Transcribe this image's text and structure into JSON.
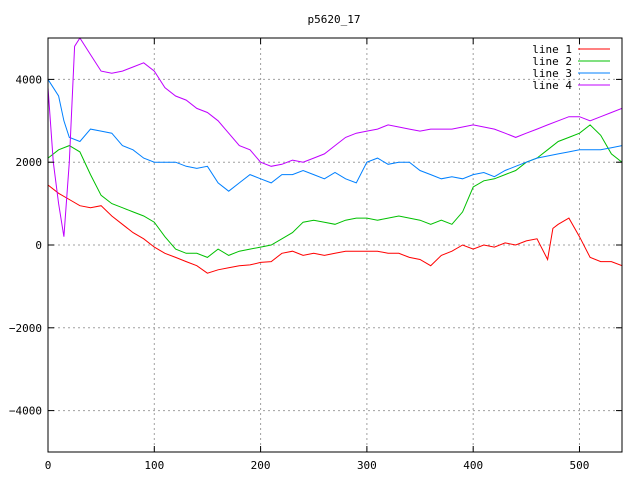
{
  "chart_data": {
    "type": "line",
    "title": "p5620_17",
    "xlabel": "",
    "ylabel": "",
    "xlim": [
      0,
      540
    ],
    "ylim": [
      -5000,
      5000
    ],
    "x_ticks": [
      0,
      100,
      200,
      300,
      400,
      500
    ],
    "y_ticks": [
      -4000,
      -2000,
      0,
      2000,
      4000
    ],
    "x_tick_labels": [
      "0",
      "100",
      "200",
      "300",
      "400",
      "500"
    ],
    "y_tick_labels": [
      "−4000",
      "−2000",
      "0",
      "2000",
      "4000"
    ],
    "grid": true,
    "legend_position": "top-right",
    "series": [
      {
        "name": "line 1",
        "color": "#ff0000",
        "points": [
          [
            0,
            1450
          ],
          [
            10,
            1250
          ],
          [
            20,
            1100
          ],
          [
            30,
            950
          ],
          [
            40,
            900
          ],
          [
            50,
            950
          ],
          [
            60,
            700
          ],
          [
            70,
            500
          ],
          [
            80,
            300
          ],
          [
            90,
            150
          ],
          [
            100,
            -50
          ],
          [
            110,
            -200
          ],
          [
            120,
            -300
          ],
          [
            130,
            -400
          ],
          [
            140,
            -500
          ],
          [
            150,
            -680
          ],
          [
            160,
            -600
          ],
          [
            170,
            -550
          ],
          [
            180,
            -500
          ],
          [
            190,
            -480
          ],
          [
            200,
            -420
          ],
          [
            210,
            -400
          ],
          [
            220,
            -200
          ],
          [
            230,
            -150
          ],
          [
            240,
            -250
          ],
          [
            250,
            -200
          ],
          [
            260,
            -250
          ],
          [
            270,
            -200
          ],
          [
            280,
            -150
          ],
          [
            290,
            -150
          ],
          [
            300,
            -150
          ],
          [
            310,
            -150
          ],
          [
            320,
            -200
          ],
          [
            330,
            -200
          ],
          [
            340,
            -300
          ],
          [
            350,
            -350
          ],
          [
            360,
            -500
          ],
          [
            370,
            -250
          ],
          [
            380,
            -150
          ],
          [
            390,
            0
          ],
          [
            400,
            -100
          ],
          [
            410,
            0
          ],
          [
            420,
            -50
          ],
          [
            430,
            50
          ],
          [
            440,
            0
          ],
          [
            450,
            100
          ],
          [
            460,
            150
          ],
          [
            470,
            -350
          ],
          [
            475,
            400
          ],
          [
            480,
            500
          ],
          [
            490,
            650
          ],
          [
            500,
            200
          ],
          [
            510,
            -300
          ],
          [
            520,
            -400
          ],
          [
            530,
            -400
          ],
          [
            540,
            -500
          ]
        ]
      },
      {
        "name": "line 2",
        "color": "#00c000",
        "points": [
          [
            0,
            2100
          ],
          [
            10,
            2300
          ],
          [
            20,
            2400
          ],
          [
            30,
            2250
          ],
          [
            40,
            1700
          ],
          [
            50,
            1200
          ],
          [
            60,
            1000
          ],
          [
            70,
            900
          ],
          [
            80,
            800
          ],
          [
            90,
            700
          ],
          [
            100,
            550
          ],
          [
            110,
            200
          ],
          [
            120,
            -100
          ],
          [
            130,
            -200
          ],
          [
            140,
            -200
          ],
          [
            150,
            -300
          ],
          [
            160,
            -100
          ],
          [
            170,
            -250
          ],
          [
            180,
            -150
          ],
          [
            190,
            -100
          ],
          [
            200,
            -50
          ],
          [
            210,
            0
          ],
          [
            220,
            150
          ],
          [
            230,
            300
          ],
          [
            240,
            550
          ],
          [
            250,
            600
          ],
          [
            260,
            550
          ],
          [
            270,
            500
          ],
          [
            280,
            600
          ],
          [
            290,
            650
          ],
          [
            300,
            650
          ],
          [
            310,
            600
          ],
          [
            320,
            650
          ],
          [
            330,
            700
          ],
          [
            340,
            650
          ],
          [
            350,
            600
          ],
          [
            360,
            500
          ],
          [
            370,
            600
          ],
          [
            380,
            500
          ],
          [
            390,
            800
          ],
          [
            400,
            1400
          ],
          [
            410,
            1550
          ],
          [
            420,
            1600
          ],
          [
            430,
            1700
          ],
          [
            440,
            1800
          ],
          [
            450,
            2000
          ],
          [
            460,
            2100
          ],
          [
            470,
            2300
          ],
          [
            480,
            2500
          ],
          [
            490,
            2600
          ],
          [
            500,
            2700
          ],
          [
            510,
            2900
          ],
          [
            520,
            2650
          ],
          [
            530,
            2200
          ],
          [
            540,
            2000
          ]
        ]
      },
      {
        "name": "line 3",
        "color": "#0080ff",
        "points": [
          [
            0,
            4000
          ],
          [
            5,
            3800
          ],
          [
            10,
            3600
          ],
          [
            15,
            3000
          ],
          [
            20,
            2600
          ],
          [
            30,
            2500
          ],
          [
            40,
            2800
          ],
          [
            50,
            2750
          ],
          [
            60,
            2700
          ],
          [
            70,
            2400
          ],
          [
            80,
            2300
          ],
          [
            90,
            2100
          ],
          [
            100,
            2000
          ],
          [
            110,
            2000
          ],
          [
            120,
            2000
          ],
          [
            130,
            1900
          ],
          [
            140,
            1850
          ],
          [
            150,
            1900
          ],
          [
            160,
            1500
          ],
          [
            170,
            1300
          ],
          [
            180,
            1500
          ],
          [
            190,
            1700
          ],
          [
            200,
            1600
          ],
          [
            210,
            1500
          ],
          [
            220,
            1700
          ],
          [
            230,
            1700
          ],
          [
            240,
            1800
          ],
          [
            250,
            1700
          ],
          [
            260,
            1600
          ],
          [
            270,
            1750
          ],
          [
            280,
            1600
          ],
          [
            290,
            1500
          ],
          [
            300,
            2000
          ],
          [
            310,
            2100
          ],
          [
            320,
            1950
          ],
          [
            330,
            2000
          ],
          [
            340,
            2000
          ],
          [
            350,
            1800
          ],
          [
            360,
            1700
          ],
          [
            370,
            1600
          ],
          [
            380,
            1650
          ],
          [
            390,
            1600
          ],
          [
            400,
            1700
          ],
          [
            410,
            1750
          ],
          [
            420,
            1650
          ],
          [
            430,
            1800
          ],
          [
            440,
            1900
          ],
          [
            450,
            2000
          ],
          [
            460,
            2100
          ],
          [
            470,
            2150
          ],
          [
            480,
            2200
          ],
          [
            490,
            2250
          ],
          [
            500,
            2300
          ],
          [
            510,
            2300
          ],
          [
            520,
            2300
          ],
          [
            530,
            2350
          ],
          [
            540,
            2400
          ]
        ]
      },
      {
        "name": "line 4",
        "color": "#c000ff",
        "points": [
          [
            0,
            3800
          ],
          [
            5,
            2000
          ],
          [
            10,
            1000
          ],
          [
            15,
            200
          ],
          [
            20,
            2000
          ],
          [
            25,
            4800
          ],
          [
            30,
            5000
          ],
          [
            40,
            4600
          ],
          [
            50,
            4200
          ],
          [
            60,
            4150
          ],
          [
            70,
            4200
          ],
          [
            80,
            4300
          ],
          [
            90,
            4400
          ],
          [
            100,
            4200
          ],
          [
            110,
            3800
          ],
          [
            120,
            3600
          ],
          [
            130,
            3500
          ],
          [
            140,
            3300
          ],
          [
            150,
            3200
          ],
          [
            160,
            3000
          ],
          [
            170,
            2700
          ],
          [
            180,
            2400
          ],
          [
            190,
            2300
          ],
          [
            200,
            2000
          ],
          [
            210,
            1900
          ],
          [
            220,
            1950
          ],
          [
            230,
            2050
          ],
          [
            240,
            2000
          ],
          [
            250,
            2100
          ],
          [
            260,
            2200
          ],
          [
            270,
            2400
          ],
          [
            280,
            2600
          ],
          [
            290,
            2700
          ],
          [
            300,
            2750
          ],
          [
            310,
            2800
          ],
          [
            320,
            2900
          ],
          [
            330,
            2850
          ],
          [
            340,
            2800
          ],
          [
            350,
            2750
          ],
          [
            360,
            2800
          ],
          [
            370,
            2800
          ],
          [
            380,
            2800
          ],
          [
            390,
            2850
          ],
          [
            400,
            2900
          ],
          [
            410,
            2850
          ],
          [
            420,
            2800
          ],
          [
            430,
            2700
          ],
          [
            440,
            2600
          ],
          [
            450,
            2700
          ],
          [
            460,
            2800
          ],
          [
            470,
            2900
          ],
          [
            480,
            3000
          ],
          [
            490,
            3100
          ],
          [
            500,
            3100
          ],
          [
            510,
            3000
          ],
          [
            520,
            3100
          ],
          [
            530,
            3200
          ],
          [
            540,
            3300
          ]
        ]
      }
    ]
  }
}
